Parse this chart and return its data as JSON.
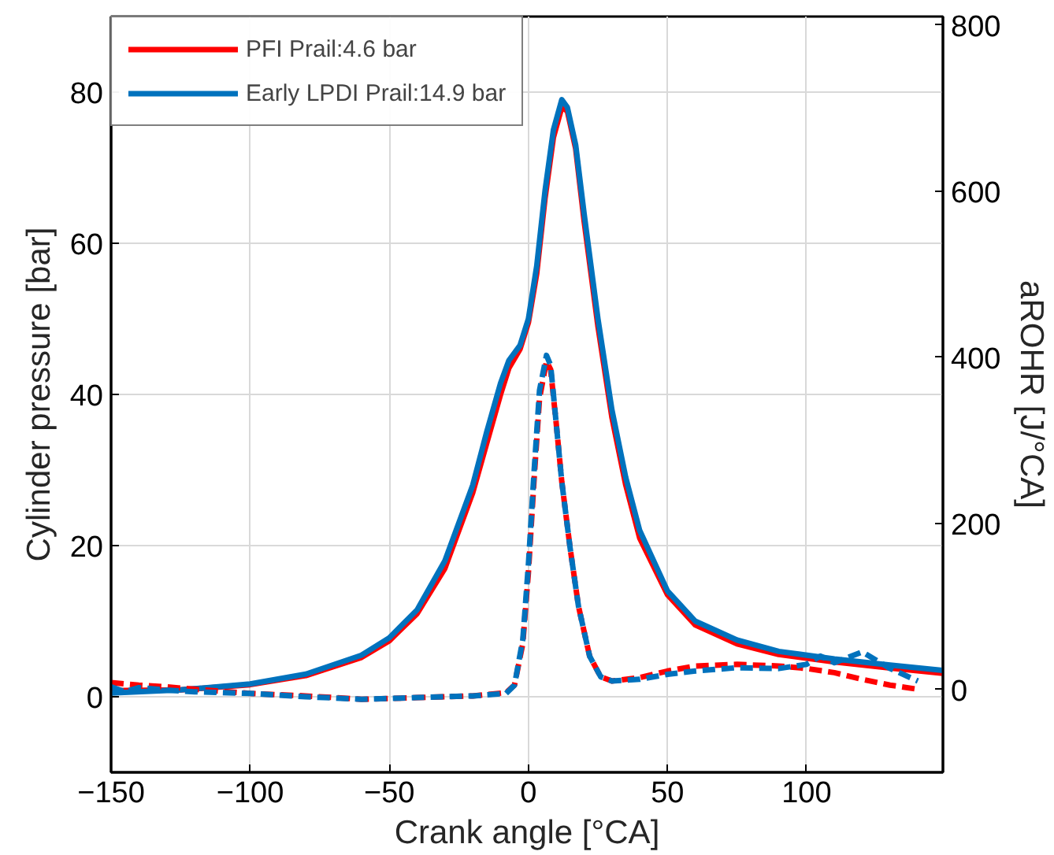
{
  "chart_data": {
    "type": "line",
    "xlabel": "Crank angle [°CA]",
    "ylabel": "Cylinder pressure [bar]",
    "y2label": "aROHR [J/°CA]",
    "xlim": [
      -150,
      149
    ],
    "xticks": [
      -150,
      -100,
      -50,
      0,
      50,
      100
    ],
    "ylim": [
      -10,
      90
    ],
    "yticks": [
      0,
      20,
      40,
      60,
      80
    ],
    "y2lim": [
      -100,
      810
    ],
    "y2ticks": [
      0,
      200,
      400,
      600,
      800
    ],
    "grid": true,
    "legend": "top left",
    "series": [
      {
        "name": "PFI Prail:4.6 bar",
        "color": "#ff0000",
        "line_style": "solid",
        "x": [
          -150,
          -125,
          -100,
          -80,
          -60,
          -50,
          -40,
          -30,
          -20,
          -15,
          -10,
          -7,
          -3,
          0,
          3,
          6,
          9,
          12,
          14,
          17,
          20,
          25,
          30,
          35,
          40,
          50,
          60,
          75,
          90,
          110,
          130,
          149
        ],
        "values": [
          0.8,
          0.9,
          1.6,
          2.8,
          5.2,
          7.4,
          11,
          17,
          27,
          33.5,
          40,
          43.5,
          46,
          49.5,
          56,
          66,
          74,
          78,
          77.5,
          72.5,
          63,
          49,
          37,
          28,
          21,
          13.5,
          9.5,
          7,
          5.6,
          4.6,
          3.8,
          3.1
        ]
      },
      {
        "name": "Early LPDI Prail:14.9 bar",
        "color": "#0072bd",
        "line_style": "solid",
        "x": [
          -150,
          -125,
          -100,
          -80,
          -60,
          -50,
          -40,
          -30,
          -20,
          -15,
          -10,
          -7,
          -3,
          0,
          3,
          6,
          9,
          12,
          14,
          17,
          20,
          25,
          30,
          35,
          40,
          50,
          60,
          75,
          90,
          110,
          130,
          149
        ],
        "values": [
          0.5,
          0.9,
          1.7,
          3,
          5.5,
          7.8,
          11.5,
          18,
          28,
          35,
          41.5,
          44.5,
          46.5,
          50,
          57,
          67,
          75,
          79,
          78,
          73,
          64,
          50,
          38,
          29,
          22,
          14,
          10,
          7.5,
          6,
          5,
          4.2,
          3.5
        ]
      },
      {
        "color": "#ff0000",
        "line_style": "dashed",
        "axis": "y2",
        "x": [
          -150,
          -140,
          -130,
          -120,
          -100,
          -80,
          -60,
          -40,
          -20,
          -8,
          -5,
          -2,
          0,
          2,
          4,
          6.5,
          8,
          10,
          12,
          15,
          18,
          22,
          26,
          30,
          40,
          50,
          60,
          75,
          90,
          100,
          110,
          120,
          130,
          140
        ],
        "values": [
          8,
          5,
          3,
          0,
          -5,
          -8,
          -12,
          -10,
          -8,
          -4,
          5,
          55,
          140,
          250,
          350,
          395,
          385,
          320,
          250,
          170,
          100,
          40,
          15,
          10,
          14,
          22,
          28,
          30,
          28,
          25,
          20,
          12,
          5,
          0
        ]
      },
      {
        "color": "#0072bd",
        "line_style": "dashed",
        "axis": "y2",
        "x": [
          -150,
          -145,
          -140,
          -130,
          -120,
          -100,
          -80,
          -60,
          -40,
          -20,
          -8,
          -5,
          -2,
          0,
          2,
          4,
          6.5,
          8,
          10,
          12,
          15,
          18,
          22,
          26,
          30,
          40,
          50,
          60,
          75,
          90,
          100,
          105,
          110,
          120,
          130,
          140
        ],
        "values": [
          3,
          -3,
          2,
          -1,
          -3,
          -5,
          -9,
          -12,
          -10,
          -8,
          -5,
          5,
          60,
          150,
          260,
          360,
          402,
          390,
          320,
          250,
          170,
          100,
          40,
          15,
          10,
          12,
          18,
          22,
          26,
          25,
          30,
          40,
          32,
          45,
          25,
          10
        ]
      }
    ]
  }
}
